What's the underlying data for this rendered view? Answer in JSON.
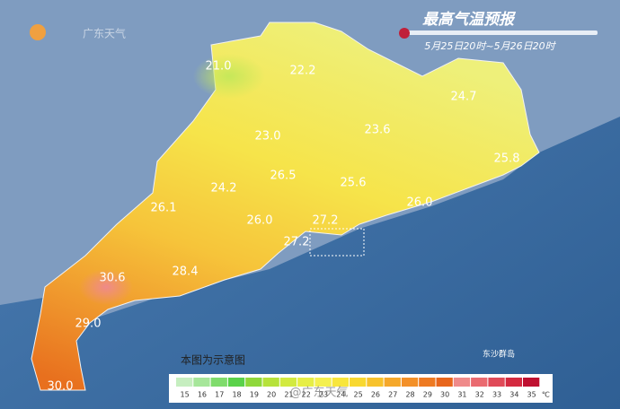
{
  "header": {
    "title": "最高气温预报",
    "subtitle": "5月25日20时~5月26日20时",
    "logo": "广东天气"
  },
  "temps": [
    "21.0",
    "22.2",
    "24.7",
    "23.0",
    "23.6",
    "25.8",
    "26.5",
    "25.6",
    "24.2",
    "26.0",
    "26.1",
    "26.0",
    "27.2",
    "27.2",
    "30.6",
    "28.4",
    "29.0",
    "30.0"
  ],
  "note": "本图为示意图",
  "island": "东沙群岛",
  "watermark": "@广东天气",
  "legend": {
    "unit": "℃",
    "steps": [
      {
        "label": 15,
        "color": "#c6eec0"
      },
      {
        "label": 16,
        "color": "#a6e69a"
      },
      {
        "label": 17,
        "color": "#7fdc6c"
      },
      {
        "label": 18,
        "color": "#5ad24a"
      },
      {
        "label": 19,
        "color": "#8fd83a"
      },
      {
        "label": 20,
        "color": "#b6e23a"
      },
      {
        "label": 21,
        "color": "#d2ea40"
      },
      {
        "label": 22,
        "color": "#e6ee46"
      },
      {
        "label": 23,
        "color": "#f4f050"
      },
      {
        "label": 24,
        "color": "#f8e63c"
      },
      {
        "label": 25,
        "color": "#f8d830"
      },
      {
        "label": 26,
        "color": "#f7c22c"
      },
      {
        "label": 27,
        "color": "#f5a82a"
      },
      {
        "label": 28,
        "color": "#f39028"
      },
      {
        "label": 29,
        "color": "#ee7a22"
      },
      {
        "label": 30,
        "color": "#e8661c"
      },
      {
        "label": 31,
        "color": "#ef8a8a"
      },
      {
        "label": 32,
        "color": "#ea6a70"
      },
      {
        "label": 33,
        "color": "#e04a58"
      },
      {
        "label": 34,
        "color": "#d42a40"
      },
      {
        "label": 35,
        "color": "#bf1030"
      }
    ]
  }
}
